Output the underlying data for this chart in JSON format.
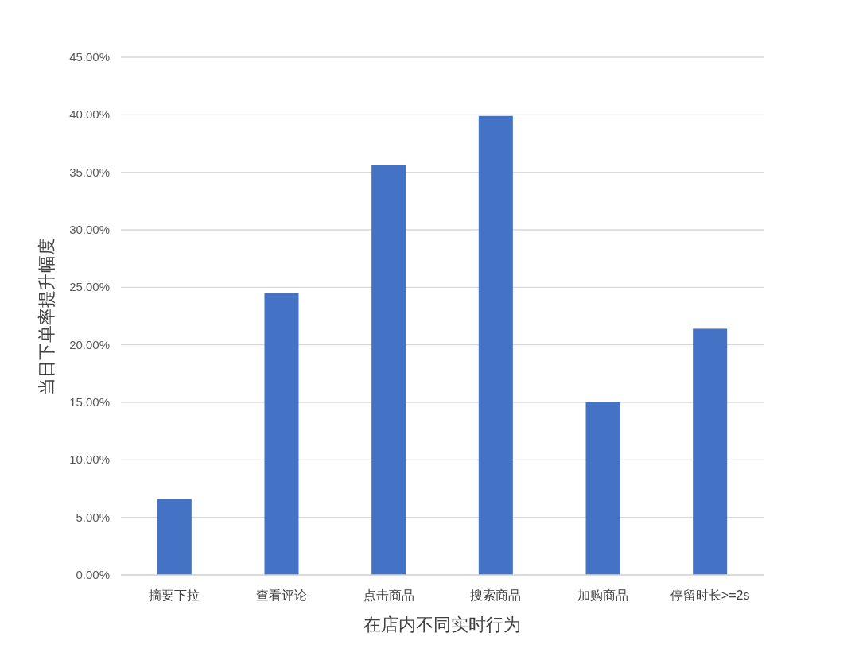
{
  "chart_data": {
    "type": "bar",
    "categories": [
      "摘要下拉",
      "查看评论",
      "点击商品",
      "搜索商品",
      "加购商品",
      "停留时长>=2s"
    ],
    "values": [
      6.6,
      24.5,
      35.6,
      39.9,
      15.0,
      21.4
    ],
    "color": "#4472c4",
    "xlabel": "在店内不同实时行为",
    "ylabel": "当日下单率提升幅度",
    "ylim": [
      0,
      45
    ],
    "yticks": [
      {
        "value": 0,
        "label": "0.00%"
      },
      {
        "value": 5,
        "label": "5.00%"
      },
      {
        "value": 10,
        "label": "10.00%"
      },
      {
        "value": 15,
        "label": "15.00%"
      },
      {
        "value": 20,
        "label": "20.00%"
      },
      {
        "value": 25,
        "label": "25.00%"
      },
      {
        "value": 30,
        "label": "30.00%"
      },
      {
        "value": 35,
        "label": "35.00%"
      },
      {
        "value": 40,
        "label": "40.00%"
      },
      {
        "value": 45,
        "label": "45.00%"
      }
    ],
    "grid": "y"
  }
}
